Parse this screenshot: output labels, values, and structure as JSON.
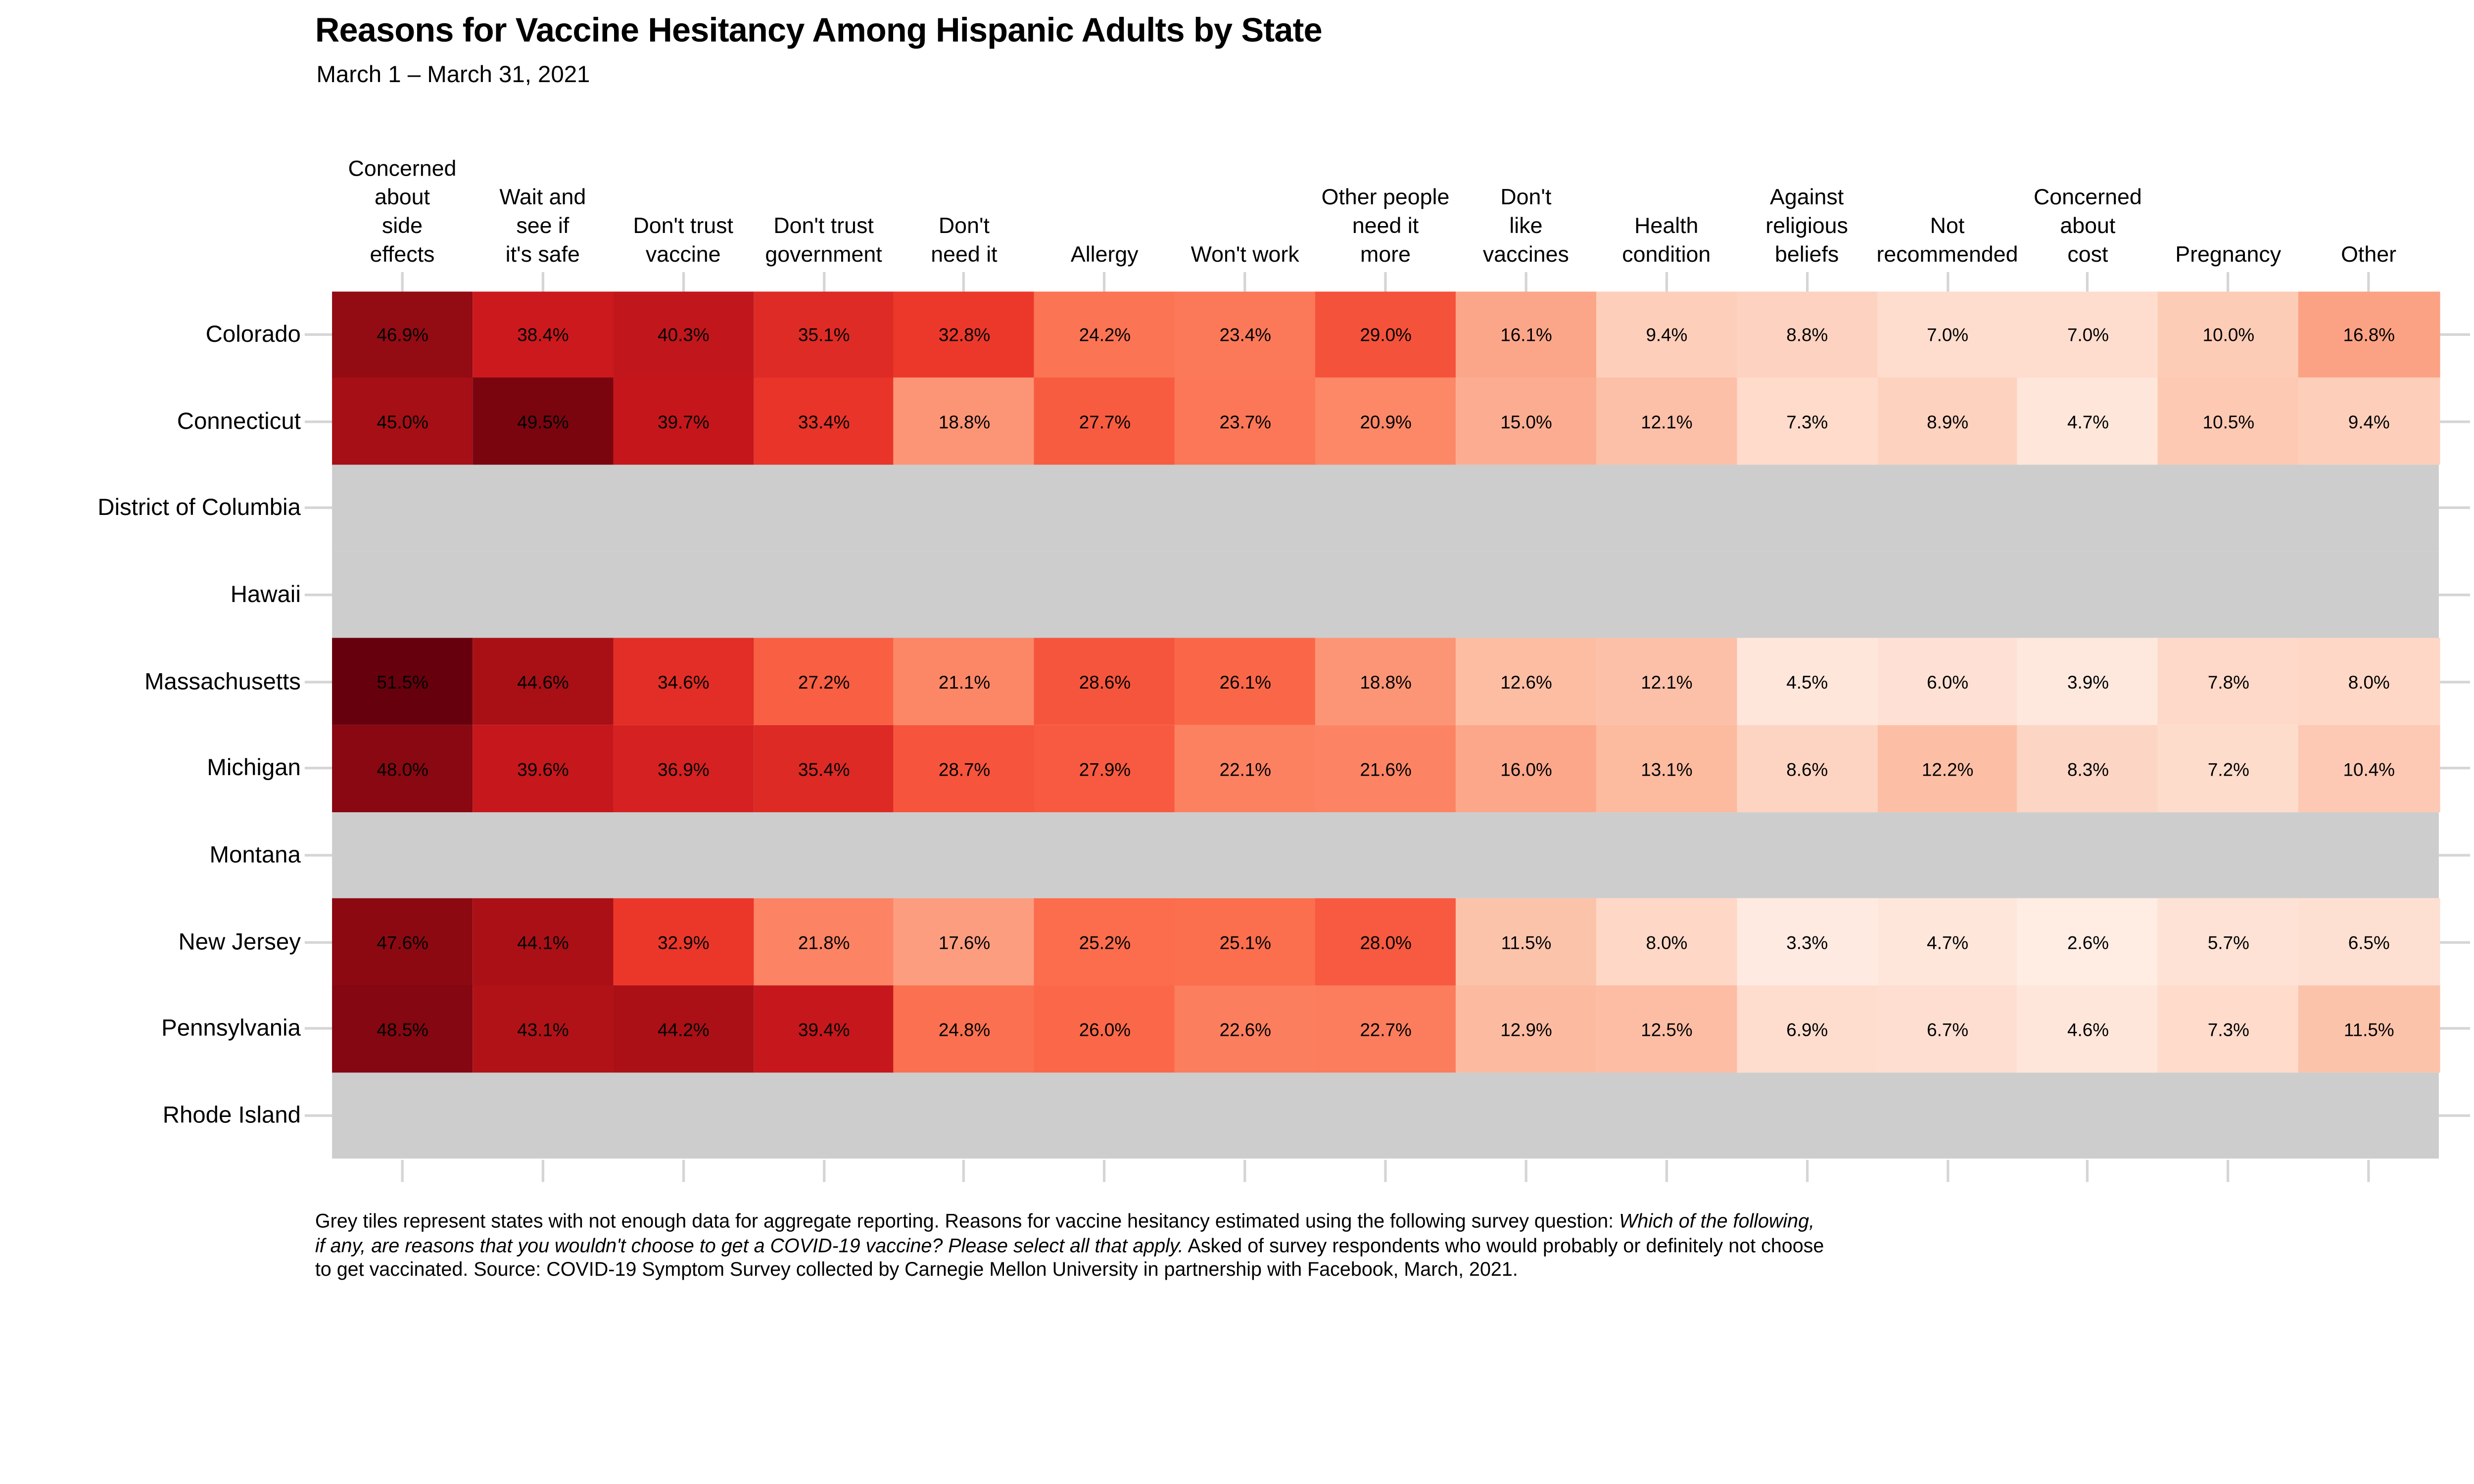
{
  "title": "Reasons for Vaccine Hesitancy Among Hispanic Adults by State",
  "subtitle": "March 1 – March 31, 2021",
  "chart_data": {
    "type": "heatmap",
    "unit": "%",
    "value_format": "one_decimal_percent",
    "columns": [
      {
        "label": "Concerned about side effects",
        "label_lines": [
          "Concerned",
          "about",
          "side",
          "effects"
        ]
      },
      {
        "label": "Wait and see if it's safe",
        "label_lines": [
          "Wait and",
          "see if",
          "it's safe"
        ]
      },
      {
        "label": "Don't trust vaccine",
        "label_lines": [
          "Don't trust",
          "vaccine"
        ]
      },
      {
        "label": "Don't trust government",
        "label_lines": [
          "Don't trust",
          "government"
        ]
      },
      {
        "label": "Don't need it",
        "label_lines": [
          "Don't",
          "need it"
        ]
      },
      {
        "label": "Allergy",
        "label_lines": [
          "Allergy"
        ]
      },
      {
        "label": "Won't work",
        "label_lines": [
          "Won't work"
        ]
      },
      {
        "label": "Other people need it more",
        "label_lines": [
          "Other people",
          "need it",
          "more"
        ]
      },
      {
        "label": "Don't like vaccines",
        "label_lines": [
          "Don't",
          "like",
          "vaccines"
        ]
      },
      {
        "label": "Health condition",
        "label_lines": [
          "Health",
          "condition"
        ]
      },
      {
        "label": "Against religious beliefs",
        "label_lines": [
          "Against",
          "religious",
          "beliefs"
        ]
      },
      {
        "label": "Not recommended",
        "label_lines": [
          "Not",
          "recommended"
        ]
      },
      {
        "label": "Concerned about cost",
        "label_lines": [
          "Concerned",
          "about",
          "cost"
        ]
      },
      {
        "label": "Pregnancy",
        "label_lines": [
          "Pregnancy"
        ]
      },
      {
        "label": "Other",
        "label_lines": [
          "Other"
        ]
      }
    ],
    "series": [
      {
        "name": "Colorado",
        "values": [
          46.9,
          38.4,
          40.3,
          35.1,
          32.8,
          24.2,
          23.4,
          29.0,
          16.1,
          9.4,
          8.8,
          7.0,
          7.0,
          10.0,
          16.8
        ]
      },
      {
        "name": "Connecticut",
        "values": [
          45.0,
          49.5,
          39.7,
          33.4,
          18.8,
          27.7,
          23.7,
          20.9,
          15.0,
          12.1,
          7.3,
          8.9,
          4.7,
          10.5,
          9.4
        ]
      },
      {
        "name": "District of Columbia",
        "values": null
      },
      {
        "name": "Hawaii",
        "values": null
      },
      {
        "name": "Massachusetts",
        "values": [
          51.5,
          44.6,
          34.6,
          27.2,
          21.1,
          28.6,
          26.1,
          18.8,
          12.6,
          12.1,
          4.5,
          6.0,
          3.9,
          7.8,
          8.0
        ]
      },
      {
        "name": "Michigan",
        "values": [
          48.0,
          39.6,
          36.9,
          35.4,
          28.7,
          27.9,
          22.1,
          21.6,
          16.0,
          13.1,
          8.6,
          12.2,
          8.3,
          7.2,
          10.4
        ]
      },
      {
        "name": "Montana",
        "values": null
      },
      {
        "name": "New Jersey",
        "values": [
          47.6,
          44.1,
          32.9,
          21.8,
          17.6,
          25.2,
          25.1,
          28.0,
          11.5,
          8.0,
          3.3,
          4.7,
          2.6,
          5.7,
          6.5
        ]
      },
      {
        "name": "Pennsylvania",
        "values": [
          48.5,
          43.1,
          44.2,
          39.4,
          24.8,
          26.0,
          22.6,
          22.7,
          12.9,
          12.5,
          6.9,
          6.7,
          4.6,
          7.3,
          11.5
        ]
      },
      {
        "name": "Rhode Island",
        "values": null
      }
    ],
    "no_data_rows": [
      "District of Columbia",
      "Hawaii",
      "Montana",
      "Rhode Island"
    ],
    "color_scale": {
      "palette": [
        "#fff5f0",
        "#fee0d2",
        "#fcbba1",
        "#fc9272",
        "#fb6a4a",
        "#ef3b2c",
        "#cb181d",
        "#a50f15",
        "#67000d"
      ],
      "domain": [
        0,
        51.5
      ],
      "no_data_color": "#cdcdcd",
      "tick_color": "#d5d5d5"
    },
    "legend": "none",
    "grid": "off"
  },
  "footnote_lines": [
    [
      {
        "t": "Grey tiles represent states with not enough data for aggregate reporting. Reasons for vaccine hesitancy estimated using the following survey question: ",
        "i": false
      },
      {
        "t": "Which of the following,",
        "i": true
      }
    ],
    [
      {
        "t": "if any, are reasons that you wouldn't choose to get a COVID-19 vaccine? Please select all that apply.",
        "i": true
      },
      {
        "t": " Asked of survey respondents who would probably or definitely not choose",
        "i": false
      }
    ],
    [
      {
        "t": "to get vaccinated. Source: COVID-19 Symptom Survey collected by Carnegie Mellon University in partnership with Facebook, March, 2021.",
        "i": false
      }
    ]
  ]
}
